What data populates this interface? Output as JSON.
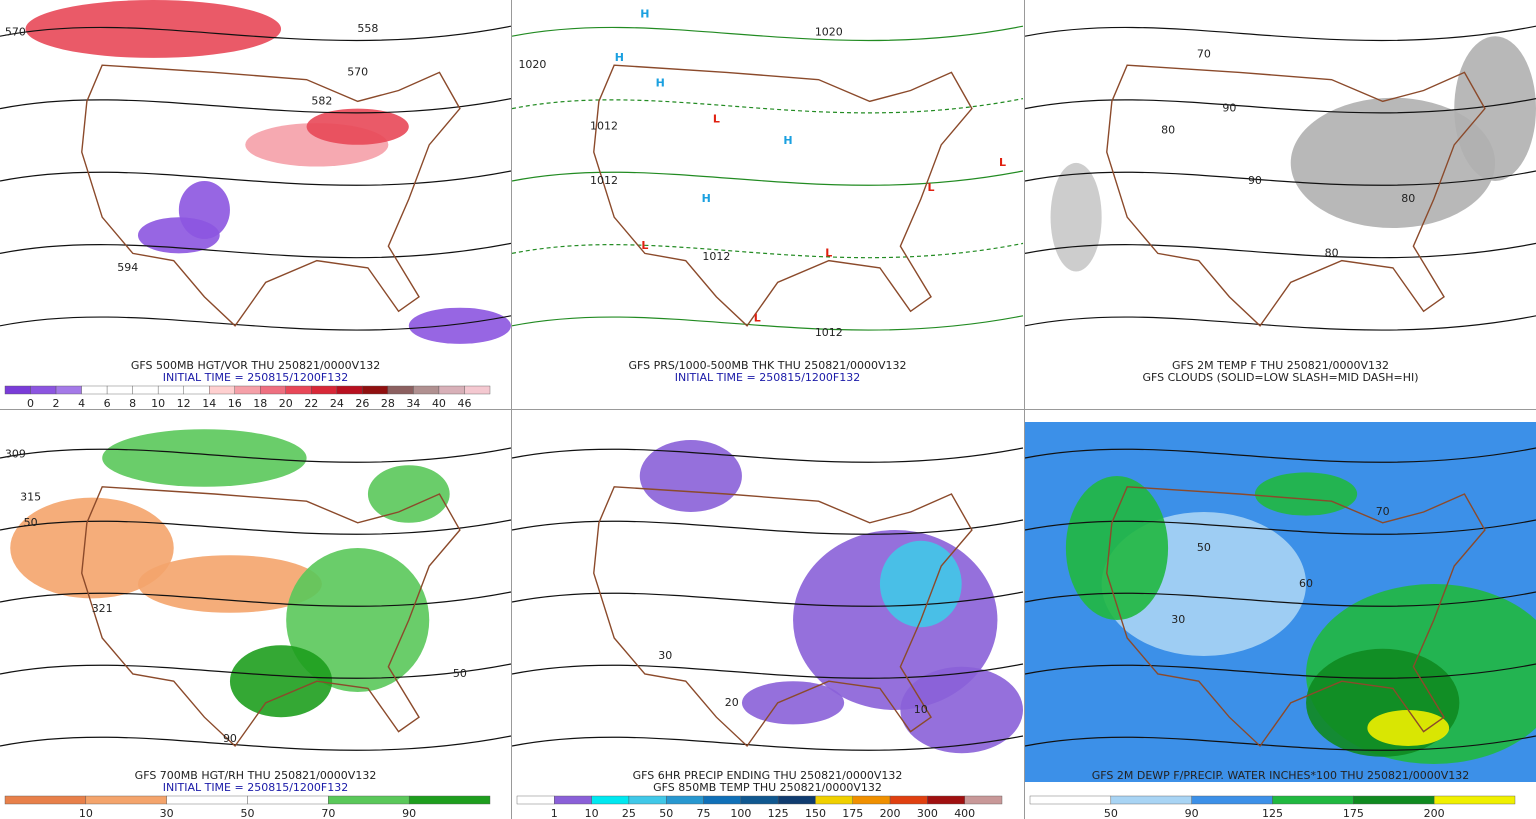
{
  "panels": [
    {
      "captions": [
        "GFS 500MB HGT/VOR THU 250821/0000V132",
        "INITIAL TIME = 250815/1200F132"
      ],
      "legend": {
        "labels": [
          0,
          2,
          4,
          6,
          8,
          10,
          12,
          14,
          16,
          18,
          20,
          22,
          24,
          26,
          28,
          34,
          40,
          46
        ],
        "colors": [
          "#7a3cd8",
          "#8c55e0",
          "#a47ae8",
          "#ffffff",
          "#ffffff",
          "#ffffff",
          "#ffffff",
          "#ffffff",
          "#ffd0d0",
          "#f5a0a8",
          "#ee7080",
          "#e84858",
          "#d82838",
          "#b81020",
          "#901010",
          "#8c6060",
          "#b09090",
          "#d8b0b8",
          "#f4c8d0"
        ]
      },
      "map_labels": [
        "570",
        "558",
        "570",
        "582",
        "594"
      ]
    },
    {
      "captions": [
        "GFS PRS/1000-500MB THK THU 250821/0000V132",
        "INITIAL TIME = 250815/1200F132"
      ],
      "map_labels": [
        "1020",
        "1020",
        "1012",
        "1012",
        "1012",
        "1012",
        "H",
        "H",
        "H",
        "H",
        "H",
        "L",
        "L",
        "L",
        "L",
        "L",
        "L"
      ]
    },
    {
      "captions": [
        "GFS 2M TEMP F THU 250821/0000V132",
        "GFS CLOUDS (SOLID=LOW SLASH=MID DASH=HI)"
      ],
      "map_labels": [
        "70",
        "80",
        "90",
        "90",
        "80",
        "80"
      ]
    },
    {
      "captions": [
        "GFS 700MB HGT/RH THU 250821/0000V132",
        "INITIAL TIME = 250815/1200F132"
      ],
      "legend": {
        "labels": [
          10,
          30,
          50,
          70,
          90
        ],
        "colors": [
          "#e8804a",
          "#f4a46c",
          "#ffffff",
          "#ffffff",
          "#5ac85a",
          "#1e9e1e"
        ]
      },
      "map_labels": [
        "309",
        "315",
        "321",
        "50",
        "50",
        "90"
      ]
    },
    {
      "captions": [
        "GFS 6HR PRECIP ENDING THU 250821/0000V132",
        "GFS 850MB TEMP THU 250821/0000V132"
      ],
      "legend": {
        "labels": [
          1,
          10,
          25,
          50,
          75,
          100,
          125,
          150,
          175,
          200,
          300,
          400
        ],
        "colors": [
          "#ffffff",
          "#8a60d8",
          "#00e8f0",
          "#40c8e8",
          "#2898d0",
          "#1070b8",
          "#105890",
          "#103c70",
          "#f0d000",
          "#f09000",
          "#e04010",
          "#a01010",
          "#c89898"
        ]
      },
      "map_labels": [
        "30",
        "20",
        "10"
      ]
    },
    {
      "captions": [
        "GFS 2M DEWP F/PRECIP. WATER INCHES*100 THU 250821/0000V132"
      ],
      "legend": {
        "labels": [
          50,
          90,
          125,
          175,
          200
        ],
        "colors": [
          "#ffffff",
          "#a8d4f4",
          "#3c90e8",
          "#20b840",
          "#108a20",
          "#f0f000"
        ]
      },
      "map_labels": [
        "30",
        "50",
        "60",
        "70"
      ]
    }
  ]
}
